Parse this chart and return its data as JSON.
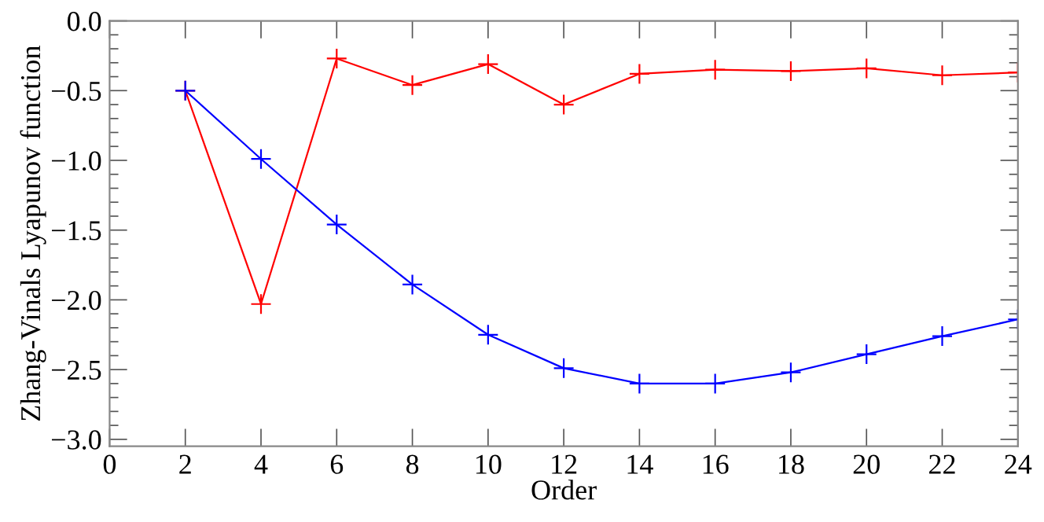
{
  "chart_data": {
    "type": "line",
    "xlabel": "Order",
    "ylabel": "Zhang-Vinals Lyapunov function",
    "x": [
      2,
      4,
      6,
      8,
      10,
      12,
      14,
      16,
      18,
      20,
      22,
      24
    ],
    "series": [
      {
        "color": "#ff0000",
        "values": [
          -0.5,
          -2.03,
          -0.27,
          -0.46,
          -0.31,
          -0.6,
          -0.38,
          -0.35,
          -0.36,
          -0.34,
          -0.39,
          -0.37
        ]
      },
      {
        "color": "#0000ff",
        "values": [
          -0.5,
          -0.99,
          -1.46,
          -1.89,
          -2.25,
          -2.49,
          -2.6,
          -2.6,
          -2.52,
          -2.39,
          -2.26,
          -2.14
        ]
      }
    ],
    "xlim": [
      0,
      24
    ],
    "xticks": [
      0,
      2,
      4,
      6,
      8,
      10,
      12,
      14,
      16,
      18,
      20,
      22,
      24
    ],
    "ylim": [
      -3.05,
      0
    ],
    "yticks": [
      {
        "value": 0,
        "label": "0.0"
      },
      {
        "value": -0.5,
        "label": "−0.5"
      },
      {
        "value": -1,
        "label": "−1.0"
      },
      {
        "value": -1.5,
        "label": "−1.5"
      },
      {
        "value": -2,
        "label": "−2.0"
      },
      {
        "value": -2.5,
        "label": "−2.5"
      },
      {
        "value": -3,
        "label": "−3.0"
      }
    ],
    "marker": "cross",
    "grid": false,
    "legend": false
  }
}
